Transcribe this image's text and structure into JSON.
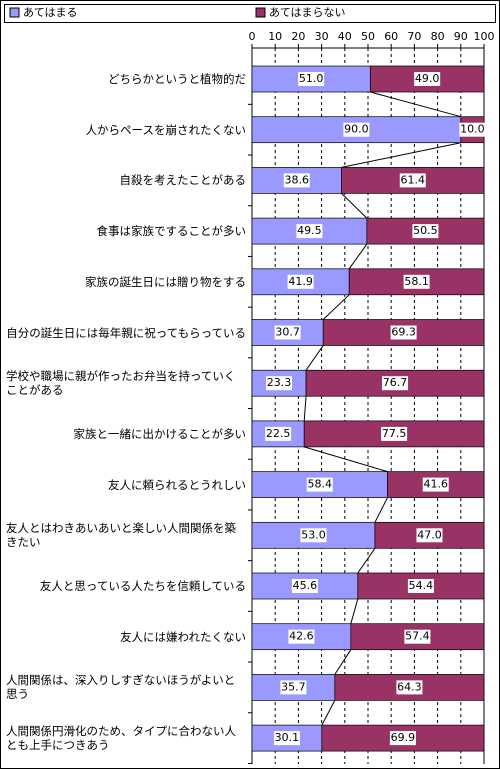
{
  "chart_data": {
    "type": "stacked-bar-horizontal",
    "categories": [
      "どちらかというと植物的だ",
      "人からペースを崩されたくない",
      "自殺を考えたことがある",
      "食事は家族ですることが多い",
      "家族の誕生日には贈り物をする",
      "自分の誕生日には毎年親に祝ってもらっている",
      "学校や職場に親が作ったお弁当を持っていくことがある",
      "家族と一緒に出かけることが多い",
      "友人に頼られるとうれしい",
      "友人とはわきあいあいと楽しい人間関係を築きたい",
      "友人と思っている人たちを信頼している",
      "友人には嫌われたくない",
      "人間関係は、深入りしすぎないほうがよいと思う",
      "人間関係円滑化のため、タイプに合わない人とも上手につきあう"
    ],
    "series": [
      {
        "name": "あてはまる",
        "color": "#9999ff",
        "values": [
          51.0,
          90.0,
          38.6,
          49.5,
          41.9,
          30.7,
          23.3,
          22.5,
          58.4,
          53.0,
          45.6,
          42.6,
          35.7,
          30.1
        ],
        "value_labels": [
          "51.0",
          "90.0",
          "38.6",
          "49.5",
          "41.9",
          "30.7",
          "23.3",
          "22.5",
          "58.4",
          "53.0",
          "45.6",
          "42.6",
          "35.7",
          "30.1"
        ]
      },
      {
        "name": "あてはまらない",
        "color": "#993366",
        "values": [
          49.0,
          10.0,
          61.4,
          50.5,
          58.1,
          69.3,
          76.7,
          77.5,
          41.6,
          47.0,
          54.4,
          57.4,
          64.3,
          69.9
        ],
        "value_labels": [
          "49.0",
          "10.0",
          "61.4",
          "50.5",
          "58.1",
          "69.3",
          "76.7",
          "77.5",
          "41.6",
          "47.0",
          "54.4",
          "57.4",
          "64.3",
          "69.9"
        ]
      }
    ],
    "xlim": [
      0,
      100
    ],
    "xticks": [
      0,
      10,
      20,
      30,
      40,
      50,
      60,
      70,
      80,
      90,
      100
    ],
    "grid": true,
    "legend": "top"
  }
}
